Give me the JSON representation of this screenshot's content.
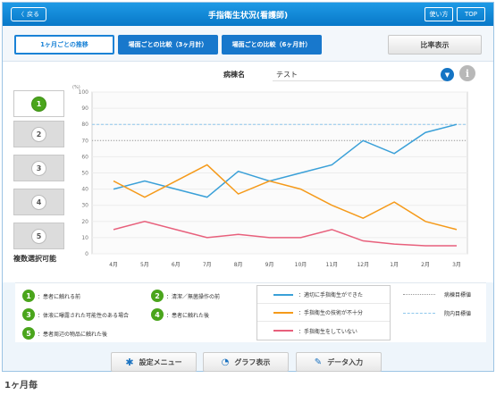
{
  "header": {
    "title": "手指衛生状況(看護師)",
    "back": "戻る",
    "help": "使い方",
    "top": "TOP"
  },
  "tabs": [
    {
      "label": "1ヶ月ごとの推移"
    },
    {
      "label": "場面ごとの比較（3ヶ月計）"
    },
    {
      "label": "場面ごとの比較（6ヶ月計）"
    }
  ],
  "ratio_button": "比率表示",
  "disease": {
    "label": "病棟名",
    "value": "テスト"
  },
  "selectors": [
    "1",
    "2",
    "3",
    "4",
    "5"
  ],
  "multi_select": "複数選択可能",
  "scenes": [
    {
      "num": "1",
      "label": "：患者に触れる前"
    },
    {
      "num": "2",
      "label": "：清潔／無菌操作の前"
    },
    {
      "num": "3",
      "label": "：体液に曝露された可能性のある場合"
    },
    {
      "num": "4",
      "label": "：患者に触れた後"
    },
    {
      "num": "5",
      "label": "：患者周辺の物品に触れた後"
    }
  ],
  "refs": [
    {
      "label": "病棟目標値"
    },
    {
      "label": "院内目標値"
    }
  ],
  "toolbar": {
    "settings": "設定メニュー",
    "graph": "グラフ表示",
    "data": "データ入力"
  },
  "footer": "1ヶ月毎",
  "colors": {
    "blue": "#3aa0d8",
    "orange": "#f59a1a",
    "pink": "#e8607c",
    "accent": "#1a82d6",
    "green": "#4aa51c"
  },
  "chart_data": {
    "type": "line",
    "ylabel": "(%)",
    "ylim": [
      0,
      100
    ],
    "yticks": [
      0,
      10,
      20,
      30,
      40,
      50,
      60,
      70,
      80,
      90,
      100
    ],
    "categories": [
      "4月",
      "5月",
      "6月",
      "7月",
      "8月",
      "9月",
      "10月",
      "11月",
      "12月",
      "1月",
      "2月",
      "3月"
    ],
    "series": [
      {
        "name": "：適切に手指衛生ができた",
        "color": "#3aa0d8",
        "values": [
          40,
          45,
          40,
          35,
          51,
          45,
          50,
          55,
          70,
          62,
          75,
          80
        ]
      },
      {
        "name": "：手指衛生の技術が不十分",
        "color": "#f59a1a",
        "values": [
          45,
          35,
          45,
          55,
          37,
          45,
          40,
          30,
          22,
          32,
          20,
          15
        ]
      },
      {
        "name": "：手指衛生をしていない",
        "color": "#e8607c",
        "values": [
          15,
          20,
          15,
          10,
          12,
          10,
          10,
          15,
          8,
          6,
          5,
          5
        ]
      }
    ],
    "reference_lines": [
      {
        "name": "病棟目標値",
        "value": 70,
        "style": "dotted",
        "color": "#999999"
      },
      {
        "name": "院内目標値",
        "value": 80,
        "style": "dashed",
        "color": "#8fc8ec"
      }
    ]
  }
}
